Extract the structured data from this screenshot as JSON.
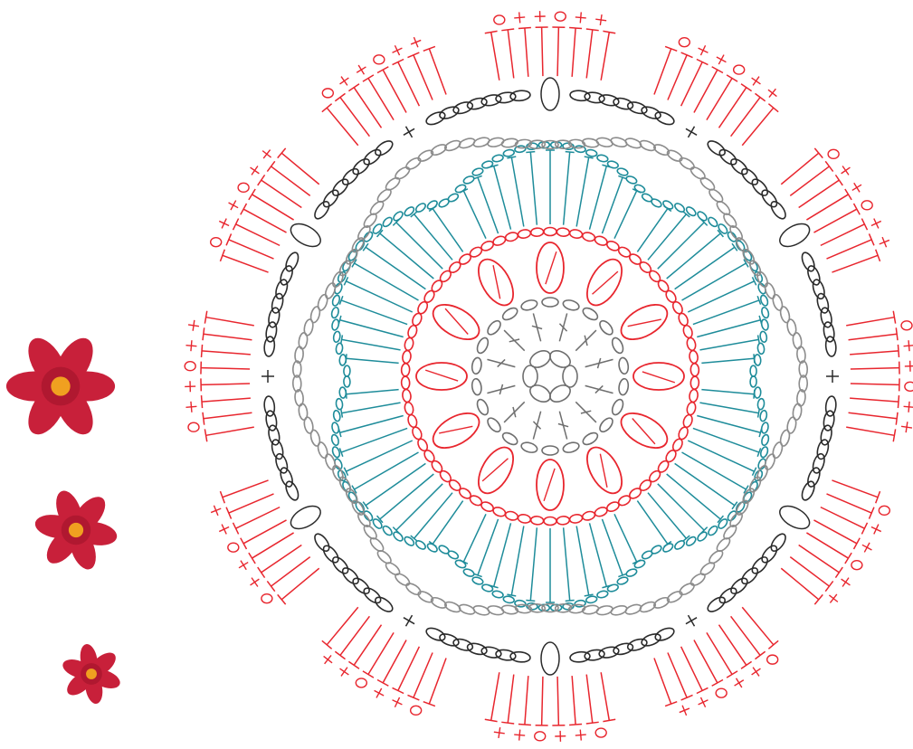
{
  "colors": {
    "background": "#ffffff",
    "outer_round": "#e8262e",
    "chain_black": "#2b2b2b",
    "chain_gray": "#8c8c8c",
    "teal_round": "#1e8c9a",
    "red_petal_round": "#e8262e",
    "center_round": "#6e6e6e",
    "flower_petal": "#c8203a",
    "flower_center": "#f0a020"
  },
  "diagram": {
    "type": "crochet-doily-chart",
    "rounds": [
      {
        "name": "center-ring",
        "symbol": "chain",
        "color": "center_round"
      },
      {
        "name": "round-1",
        "symbol": "stitch",
        "color": "center_round"
      },
      {
        "name": "round-2",
        "symbol": "puff-petal",
        "color": "red_petal_round"
      },
      {
        "name": "round-3",
        "symbol": "fan",
        "color": "teal_round"
      },
      {
        "name": "round-4",
        "symbol": "chain",
        "color": "chain_gray"
      },
      {
        "name": "round-5",
        "symbol": "chain-and-cluster",
        "color": "chain_black"
      },
      {
        "name": "round-6",
        "symbol": "stitch-edge",
        "color": "outer_round"
      }
    ],
    "petal_count": 12,
    "scallop_count": 6,
    "outer_segment_count": 12
  },
  "flowers": [
    {
      "name": "large-flower",
      "icon": "six-petal-flower"
    },
    {
      "name": "medium-flower",
      "icon": "six-petal-flower"
    },
    {
      "name": "small-flower",
      "icon": "six-petal-flower"
    }
  ]
}
